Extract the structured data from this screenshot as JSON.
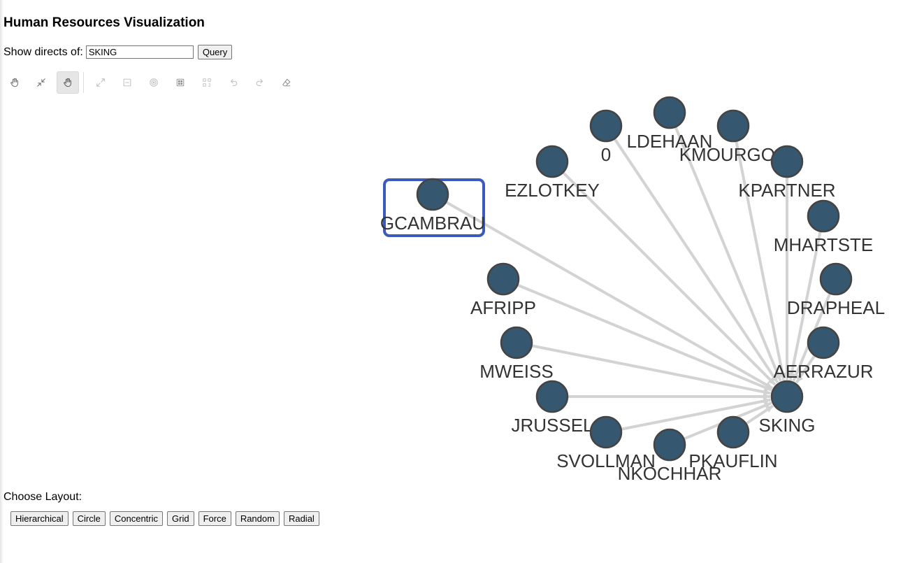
{
  "page": {
    "title": "Human Resources Visualization"
  },
  "query": {
    "label": "Show directs of:",
    "value": "SKING",
    "button": "Query"
  },
  "toolbar": {
    "tools": [
      {
        "icon": "pan-hand-icon",
        "active": false
      },
      {
        "icon": "shrink-icon",
        "active": false
      },
      {
        "icon": "select-hand-icon",
        "active": true
      },
      {
        "icon": "expand-icon",
        "active": false
      },
      {
        "icon": "collapse-icon",
        "active": false
      },
      {
        "icon": "target-icon",
        "active": false
      },
      {
        "icon": "grid-icon",
        "active": false
      },
      {
        "icon": "tree-icon",
        "active": false
      },
      {
        "icon": "undo-icon",
        "active": false
      },
      {
        "icon": "redo-icon",
        "active": false
      },
      {
        "icon": "eraser-icon",
        "active": false
      }
    ]
  },
  "graph": {
    "center": "SKING",
    "selected": "GCAMBRAU",
    "node_color": "#35576f",
    "edge_color": "#d3d3d3",
    "selection_color": "#3a5bbd",
    "nodes": [
      "0",
      "LDEHAAN",
      "KMOURGOS",
      "EZLOTKEY",
      "KPARTNER",
      "GCAMBRAU",
      "MHARTSTE",
      "AFRIPP",
      "DRAPHEAL",
      "MWEISS",
      "AERRAZUR",
      "JRUSSEL",
      "SKING",
      "SVOLLMAN",
      "NKOCHHAR",
      "PKAUFLIN"
    ]
  },
  "layouts": {
    "label": "Choose Layout:",
    "buttons": [
      "Hierarchical",
      "Circle",
      "Concentric",
      "Grid",
      "Force",
      "Random",
      "Radial"
    ]
  }
}
